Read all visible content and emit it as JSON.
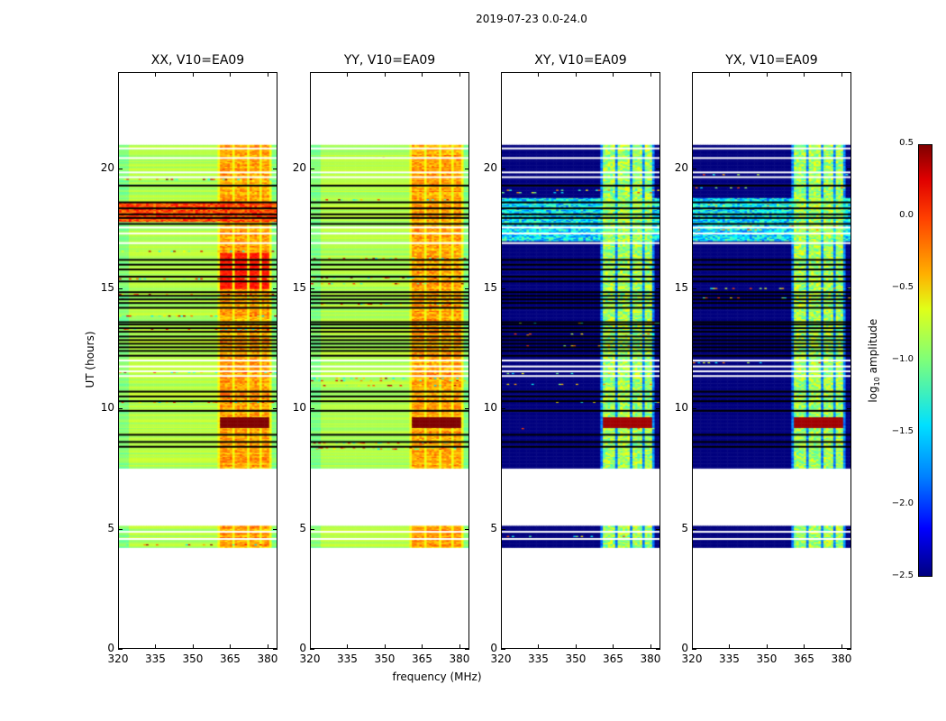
{
  "suptitle": "2019-07-23 0.0-24.0",
  "panels": [
    {
      "title": "XX, V10=EA09",
      "kind": "parallel"
    },
    {
      "title": "YY, V10=EA09",
      "kind": "parallel"
    },
    {
      "title": "XY, V10=EA09",
      "kind": "cross"
    },
    {
      "title": "YX, V10=EA09",
      "kind": "cross"
    }
  ],
  "xlabel": "frequency (MHz)",
  "ylabel": "UT (hours)",
  "colorbar_label": "log10 amplitude",
  "chart_data": {
    "type": "heatmap",
    "title": "2019-07-23 0.0-24.0",
    "xlabel": "frequency (MHz)",
    "ylabel": "UT (hours)",
    "xlim": [
      320,
      384
    ],
    "ylim": [
      0,
      24
    ],
    "xticks": [
      "320",
      "335",
      "350",
      "365",
      "380"
    ],
    "yticks": [
      "0",
      "5",
      "10",
      "15",
      "20"
    ],
    "colorbar": {
      "label": "log10 amplitude",
      "range": [
        -2.5,
        0.5
      ],
      "ticks": [
        "0.5",
        "0.0",
        "−0.5",
        "−1.0",
        "−1.5",
        "−2.0",
        "−2.5"
      ],
      "cmap": "jet"
    },
    "data_time_blocks_hours": [
      [
        4.2,
        5.05
      ],
      [
        7.5,
        21.0
      ]
    ],
    "white_rows_hours": [
      4.55,
      4.85,
      7.45,
      11.35,
      11.55,
      11.75,
      12.0,
      16.9,
      17.3,
      17.55,
      19.65,
      19.85,
      20.45,
      20.85
    ],
    "black_rows_hours": [
      8.4,
      8.6,
      8.9,
      9.9,
      10.3,
      10.5,
      10.7,
      12.2,
      12.4,
      12.55,
      12.7,
      12.85,
      13.0,
      13.2,
      13.35,
      13.5,
      13.6,
      14.2,
      14.4,
      14.55,
      14.7,
      14.85,
      15.3,
      15.5,
      15.8,
      16.0,
      16.2,
      17.7,
      17.95,
      18.1,
      18.35,
      18.6,
      19.3
    ],
    "band_subbands_mhz": [
      [
        361,
        366
      ],
      [
        367,
        372
      ],
      [
        373,
        377
      ],
      [
        378,
        381
      ]
    ],
    "levels": {
      "parallel_base": -0.85,
      "parallel_band": -0.35,
      "cross_base": -2.5,
      "cross_band": -0.9,
      "rfi_peak": 0.5
    }
  }
}
